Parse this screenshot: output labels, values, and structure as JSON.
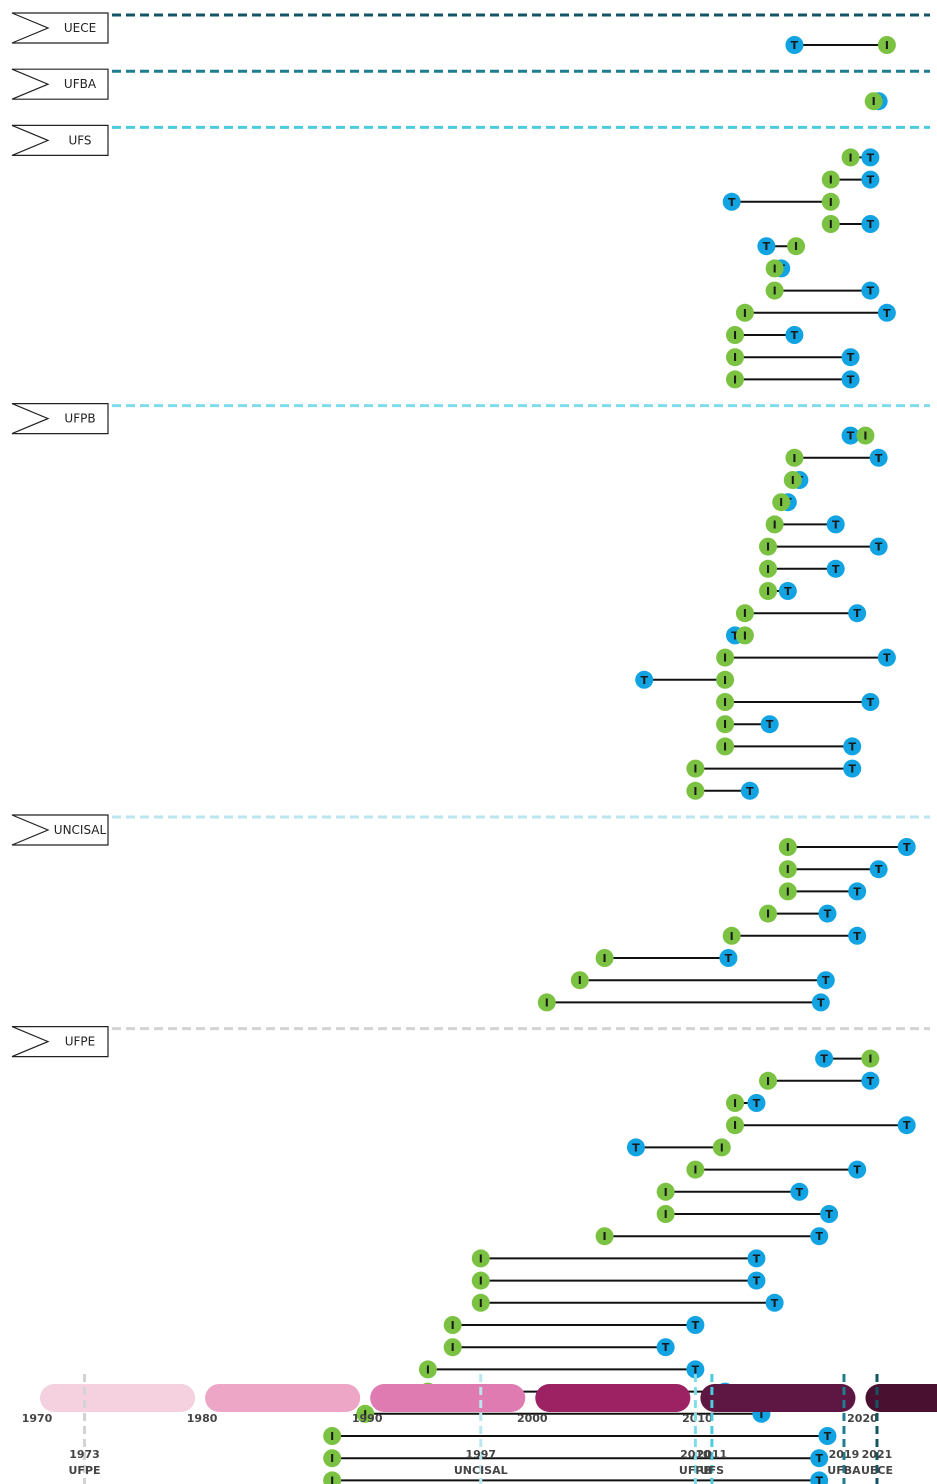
{
  "chart_data": {
    "type": "timeline",
    "x_axis": {
      "range": [
        1970,
        2025
      ],
      "ticks": [
        1970,
        1980,
        1990,
        2000,
        2010,
        2020
      ]
    },
    "markers": {
      "start_label": "I",
      "end_label": "T",
      "start_color": "#7cc242",
      "end_color": "#12a3e3"
    },
    "decade_bar_colors": [
      "#f5d0df",
      "#eda6c6",
      "#df7bb0",
      "#9c2263",
      "#5e1743",
      "#4a1030"
    ],
    "events": [
      {
        "year": 1973,
        "year_label": "1973",
        "name": "UFPE",
        "color": "#d3d3d3"
      },
      {
        "year": 1997,
        "year_label": "1997",
        "name": "UNCISAL",
        "color": "#b9e6ef"
      },
      {
        "year": 2010,
        "year_label": "2010",
        "name": "UFPB",
        "color": "#7fdcea"
      },
      {
        "year": 2011,
        "year_label": "2011",
        "name": "UFS",
        "color": "#4ccbdf"
      },
      {
        "year": 2019,
        "year_label": "2019",
        "name": "UFBA",
        "color": "#1e7d8f"
      },
      {
        "year": 2021,
        "year_label": "2021",
        "name": "UECE",
        "color": "#135465"
      }
    ],
    "groups": [
      {
        "name": "UECE",
        "line_color": "#135465",
        "rows": [
          {
            "i": 2021.6,
            "t": 2016.0
          }
        ]
      },
      {
        "name": "UFBA",
        "line_color": "#1e7d8f",
        "rows": [
          {
            "i": 2020.8,
            "t": 2021.1
          }
        ]
      },
      {
        "name": "UFS",
        "line_color": "#4ccbdf",
        "rows": [
          {
            "i": 2019.4,
            "t": 2020.6
          },
          {
            "i": 2018.2,
            "t": 2020.6
          },
          {
            "i": 2018.2,
            "t": 2012.2
          },
          {
            "i": 2018.2,
            "t": 2020.6
          },
          {
            "i": 2016.1,
            "t": 2014.3
          },
          {
            "i": 2014.8,
            "t": 2015.2
          },
          {
            "i": 2014.8,
            "t": 2020.6
          },
          {
            "i": 2013.0,
            "t": 2021.6
          },
          {
            "i": 2012.4,
            "t": 2016.0
          },
          {
            "i": 2012.4,
            "t": 2019.4
          },
          {
            "i": 2012.4,
            "t": 2019.4
          }
        ]
      },
      {
        "name": "UFPB",
        "line_color": "#7fdcea",
        "rows": [
          {
            "i": 2020.3,
            "t": 2019.4
          },
          {
            "i": 2016.0,
            "t": 2021.1
          },
          {
            "i": 2015.9,
            "t": 2016.3
          },
          {
            "i": 2015.2,
            "t": 2015.6
          },
          {
            "i": 2014.8,
            "t": 2018.5
          },
          {
            "i": 2014.4,
            "t": 2021.1
          },
          {
            "i": 2014.4,
            "t": 2018.5
          },
          {
            "i": 2014.4,
            "t": 2015.6
          },
          {
            "i": 2013.0,
            "t": 2019.8
          },
          {
            "i": 2013.0,
            "t": 2012.4
          },
          {
            "i": 2011.8,
            "t": 2021.6
          },
          {
            "i": 2011.8,
            "t": 2006.9
          },
          {
            "i": 2011.8,
            "t": 2020.6
          },
          {
            "i": 2011.8,
            "t": 2014.5
          },
          {
            "i": 2011.8,
            "t": 2019.5
          },
          {
            "i": 2010.0,
            "t": 2019.5
          },
          {
            "i": 2010.0,
            "t": 2013.3
          }
        ]
      },
      {
        "name": "UNCISAL",
        "line_color": "#b9e6ef",
        "rows": [
          {
            "i": 2015.6,
            "t": 2022.8
          },
          {
            "i": 2015.6,
            "t": 2021.1
          },
          {
            "i": 2015.6,
            "t": 2019.8
          },
          {
            "i": 2014.4,
            "t": 2018.0
          },
          {
            "i": 2012.2,
            "t": 2019.8
          },
          {
            "i": 2004.5,
            "t": 2012.0
          },
          {
            "i": 2003.0,
            "t": 2017.9
          },
          {
            "i": 2001.0,
            "t": 2017.6
          }
        ]
      },
      {
        "name": "UFPE",
        "line_color": "#d3d3d3",
        "rows": [
          {
            "i": 2020.6,
            "t": 2017.8
          },
          {
            "i": 2014.4,
            "t": 2020.6
          },
          {
            "i": 2012.4,
            "t": 2013.7
          },
          {
            "i": 2012.4,
            "t": 2022.8
          },
          {
            "i": 2011.6,
            "t": 2006.4
          },
          {
            "i": 2010.0,
            "t": 2019.8
          },
          {
            "i": 2008.2,
            "t": 2016.3
          },
          {
            "i": 2008.2,
            "t": 2018.1
          },
          {
            "i": 2004.5,
            "t": 2017.5
          },
          {
            "i": 1997.0,
            "t": 2013.7
          },
          {
            "i": 1997.0,
            "t": 2013.7
          },
          {
            "i": 1997.0,
            "t": 2014.8
          },
          {
            "i": 1995.3,
            "t": 2010.0
          },
          {
            "i": 1995.3,
            "t": 2008.2
          },
          {
            "i": 1993.8,
            "t": 2010.0
          },
          {
            "i": 1993.8,
            "t": 2011.8
          },
          {
            "i": 1990.0,
            "t": 2014.0
          },
          {
            "i": 1988.0,
            "t": 2018.0
          },
          {
            "i": 1988.0,
            "t": 2017.5
          },
          {
            "i": 1988.0,
            "t": 2017.5
          }
        ]
      }
    ]
  }
}
